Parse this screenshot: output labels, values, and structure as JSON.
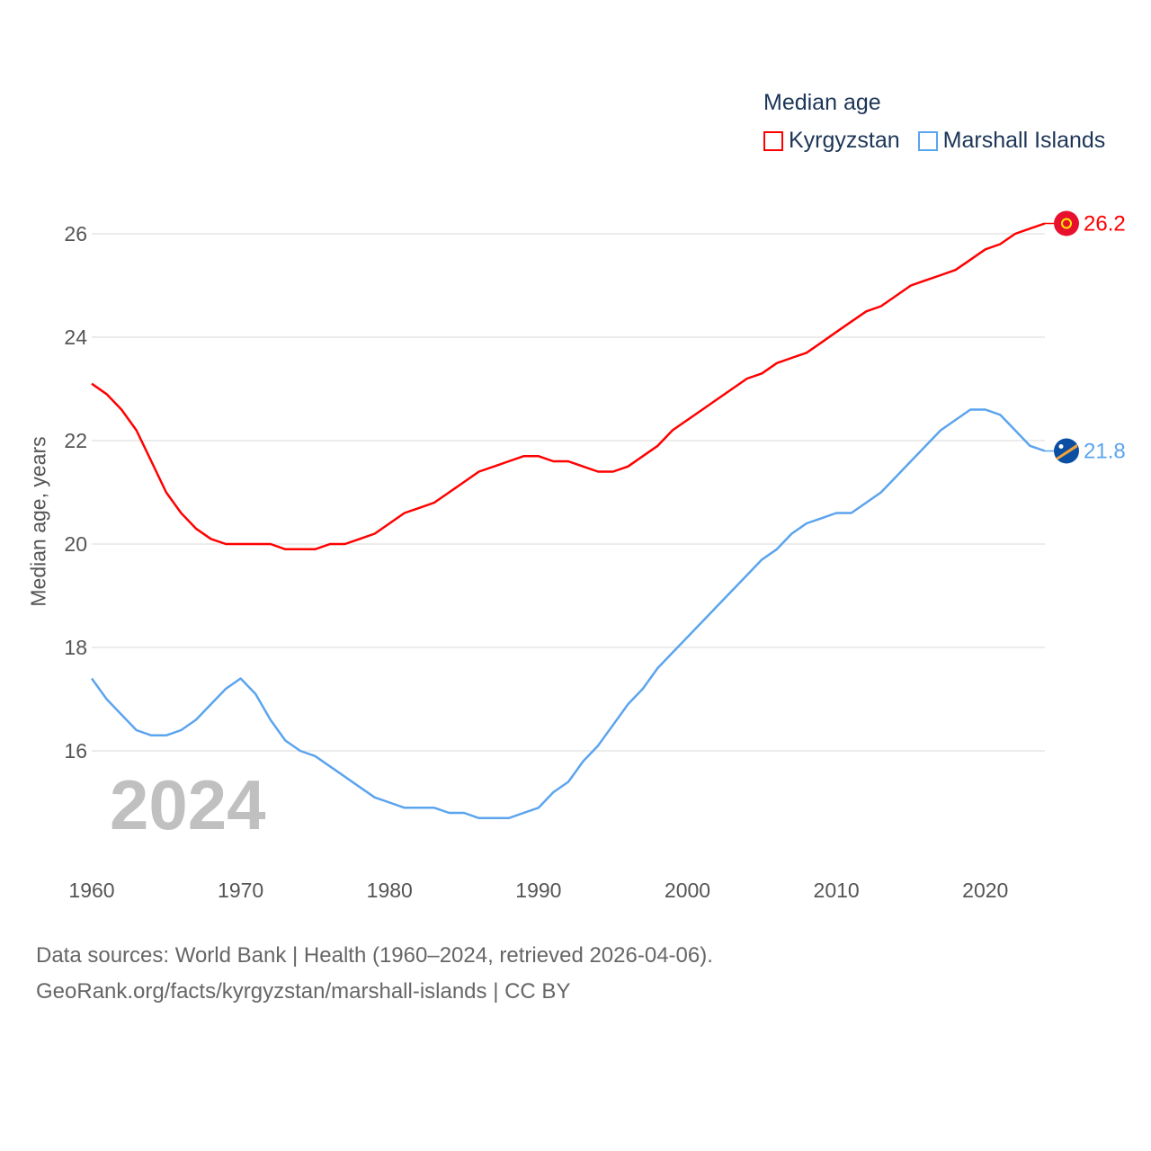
{
  "chart_data": {
    "type": "line",
    "title": "Median age",
    "xlabel": "",
    "ylabel": "Median age, years",
    "xlim": [
      1960,
      2024
    ],
    "ylim": [
      14,
      27
    ],
    "x_ticks": [
      1960,
      1970,
      1980,
      1990,
      2000,
      2010,
      2020
    ],
    "y_ticks": [
      16,
      18,
      20,
      22,
      24,
      26
    ],
    "grid": true,
    "legend_position": "top-right",
    "year_label": "2024",
    "x": [
      1960,
      1961,
      1962,
      1963,
      1964,
      1965,
      1966,
      1967,
      1968,
      1969,
      1970,
      1971,
      1972,
      1973,
      1974,
      1975,
      1976,
      1977,
      1978,
      1979,
      1980,
      1981,
      1982,
      1983,
      1984,
      1985,
      1986,
      1987,
      1988,
      1989,
      1990,
      1991,
      1992,
      1993,
      1994,
      1995,
      1996,
      1997,
      1998,
      1999,
      2000,
      2001,
      2002,
      2003,
      2004,
      2005,
      2006,
      2007,
      2008,
      2009,
      2010,
      2011,
      2012,
      2013,
      2014,
      2015,
      2016,
      2017,
      2018,
      2019,
      2020,
      2021,
      2022,
      2023,
      2024
    ],
    "series": [
      {
        "name": "Kyrgyzstan",
        "color": "#ff0000",
        "end_label": "26.2",
        "flag_color": "#e8112d",
        "values": [
          23.1,
          22.9,
          22.6,
          22.2,
          21.6,
          21.0,
          20.6,
          20.3,
          20.1,
          20.0,
          20.0,
          20.0,
          20.0,
          19.9,
          19.9,
          19.9,
          20.0,
          20.0,
          20.1,
          20.2,
          20.4,
          20.6,
          20.7,
          20.8,
          21.0,
          21.2,
          21.4,
          21.5,
          21.6,
          21.7,
          21.7,
          21.6,
          21.6,
          21.5,
          21.4,
          21.4,
          21.5,
          21.7,
          21.9,
          22.2,
          22.4,
          22.6,
          22.8,
          23.0,
          23.2,
          23.3,
          23.5,
          23.6,
          23.7,
          23.9,
          24.1,
          24.3,
          24.5,
          24.6,
          24.8,
          25.0,
          25.1,
          25.2,
          25.3,
          25.5,
          25.7,
          25.8,
          26.0,
          26.1,
          26.2
        ]
      },
      {
        "name": "Marshall Islands",
        "color": "#5ba4ee",
        "end_label": "21.8",
        "flag_color": "#0b4ea2",
        "values": [
          17.4,
          17.0,
          16.7,
          16.4,
          16.3,
          16.3,
          16.4,
          16.6,
          16.9,
          17.2,
          17.4,
          17.1,
          16.6,
          16.2,
          16.0,
          15.9,
          15.7,
          15.5,
          15.3,
          15.1,
          15.0,
          14.9,
          14.9,
          14.9,
          14.8,
          14.8,
          14.7,
          14.7,
          14.7,
          14.8,
          14.9,
          15.2,
          15.4,
          15.8,
          16.1,
          16.5,
          16.9,
          17.2,
          17.6,
          17.9,
          18.2,
          18.5,
          18.8,
          19.1,
          19.4,
          19.7,
          19.9,
          20.2,
          20.4,
          20.5,
          20.6,
          20.6,
          20.8,
          21.0,
          21.3,
          21.6,
          21.9,
          22.2,
          22.4,
          22.6,
          22.6,
          22.5,
          22.2,
          21.9,
          21.8
        ]
      }
    ]
  },
  "footer": {
    "line1": "Data sources: World Bank | Health (1960–2024, retrieved 2026-04-06).",
    "line2": "GeoRank.org/facts/kyrgyzstan/marshall-islands | CC BY"
  }
}
